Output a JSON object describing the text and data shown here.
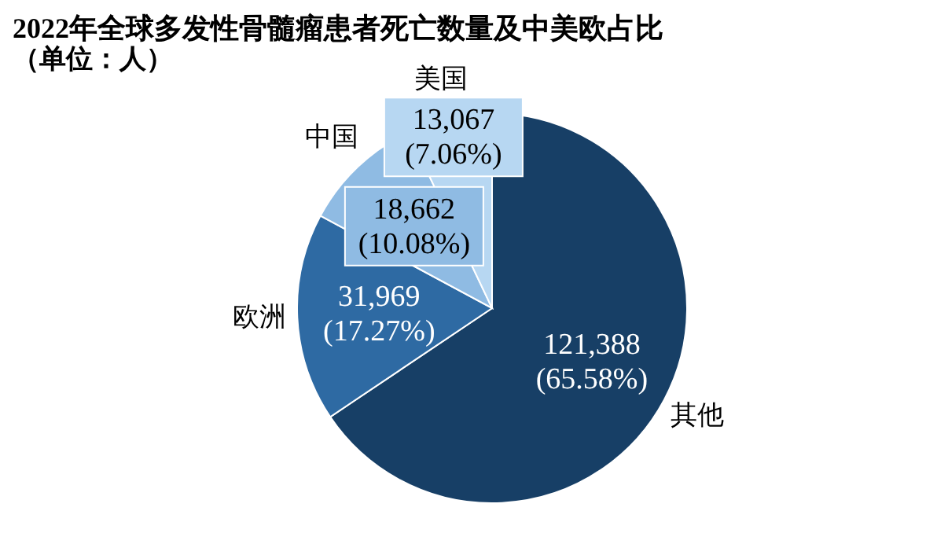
{
  "chart_data": {
    "type": "pie",
    "title": "2022年全球多发性骨髓瘤患者死亡数量及中美欧占比",
    "subtitle": "（单位：人）",
    "categories": [
      "其他",
      "欧洲",
      "中国",
      "美国"
    ],
    "values": [
      121388,
      31969,
      18662,
      13067
    ],
    "colors": [
      "#173f66",
      "#2e6aa3",
      "#8fbbe3",
      "#b7d7f2"
    ],
    "value_labels": [
      "121,388\n(65.58%)",
      "31,969\n(17.27%)",
      "18,662\n(10.08%)",
      "13,067\n(7.06%)"
    ],
    "legend": false
  }
}
